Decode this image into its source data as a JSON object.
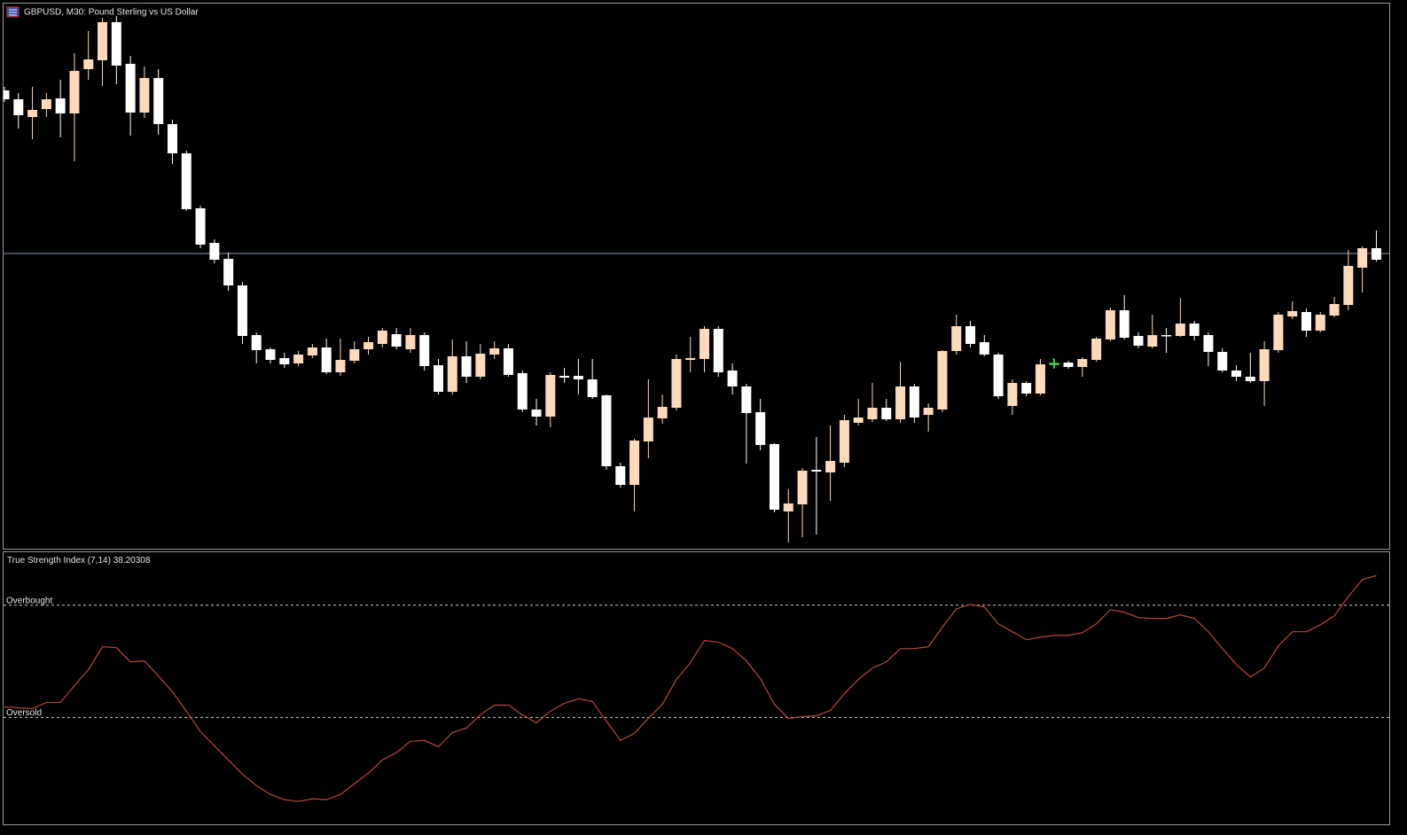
{
  "chart_data": [
    {
      "type": "candlestick",
      "title": "GBPUSD, M30:  Pound Sterling vs US Dollar",
      "open": [
        898,
        888,
        868,
        877,
        889,
        872,
        922,
        932,
        975,
        928,
        873,
        912,
        860,
        827,
        765,
        726,
        708,
        678,
        622,
        606,
        596,
        590,
        599,
        608,
        580,
        593,
        606,
        612,
        623,
        606,
        622,
        588,
        558,
        598,
        575,
        600,
        607,
        579,
        538,
        530,
        576,
        576,
        572,
        554,
        474,
        453,
        502,
        528,
        540,
        594,
        595,
        629,
        582,
        564,
        535,
        499,
        423,
        431,
        470,
        467,
        478,
        523,
        527,
        540,
        527,
        564,
        532,
        538,
        604,
        632,
        614,
        600,
        542,
        568,
        556,
        590,
        591,
        586,
        594,
        617,
        650,
        621,
        609,
        622,
        621,
        635,
        622,
        603,
        582,
        575,
        570,
        605,
        643,
        648,
        627,
        644,
        656,
        698,
        720
      ],
      "high": [
        902,
        895,
        902,
        895,
        910,
        940,
        965,
        980,
        982,
        937,
        925,
        922,
        865,
        830,
        768,
        730,
        715,
        682,
        625,
        608,
        602,
        604,
        612,
        618,
        618,
        615,
        620,
        630,
        630,
        630,
        625,
        595,
        617,
        615,
        612,
        615,
        612,
        582,
        550,
        580,
        585,
        595,
        595,
        555,
        478,
        505,
        572,
        555,
        600,
        620,
        632,
        632,
        590,
        567,
        550,
        500,
        448,
        472,
        507,
        520,
        532,
        550,
        568,
        550,
        592,
        567,
        545,
        605,
        645,
        638,
        622,
        602,
        572,
        570,
        595,
        595,
        593,
        597,
        620,
        653,
        667,
        625,
        645,
        630,
        664,
        638,
        625,
        607,
        588,
        602,
        615,
        648,
        660,
        652,
        648,
        665,
        718,
        722,
        740
      ],
      "low": [
        885,
        855,
        843,
        868,
        845,
        818,
        910,
        903,
        905,
        847,
        867,
        848,
        815,
        762,
        720,
        703,
        672,
        612,
        590,
        590,
        585,
        587,
        596,
        578,
        576,
        590,
        600,
        608,
        606,
        602,
        582,
        555,
        555,
        568,
        572,
        595,
        575,
        535,
        520,
        518,
        568,
        555,
        550,
        470,
        450,
        423,
        483,
        522,
        537,
        580,
        580,
        575,
        555,
        477,
        492,
        422,
        388,
        394,
        397,
        435,
        473,
        520,
        524,
        525,
        523,
        523,
        513,
        535,
        600,
        608,
        598,
        550,
        532,
        553,
        554,
        585,
        584,
        575,
        592,
        615,
        617,
        607,
        607,
        602,
        620,
        616,
        587,
        580,
        570,
        568,
        542,
        602,
        640,
        620,
        625,
        642,
        650,
        670,
        705
      ],
      "close": [
        888,
        870,
        876,
        888,
        872,
        920,
        933,
        975,
        926,
        873,
        912,
        860,
        827,
        764,
        724,
        707,
        678,
        621,
        605,
        594,
        589,
        600,
        608,
        580,
        594,
        606,
        614,
        627,
        609,
        622,
        587,
        558,
        598,
        575,
        601,
        607,
        577,
        538,
        530,
        577,
        574,
        572,
        552,
        474,
        453,
        503,
        529,
        541,
        595,
        596,
        629,
        580,
        564,
        534,
        498,
        425,
        432,
        469,
        468,
        480,
        526,
        529,
        540,
        527,
        564,
        529,
        540,
        604,
        632,
        612,
        600,
        553,
        568,
        556,
        589,
        589,
        586,
        595,
        618,
        650,
        619,
        610,
        622,
        621,
        635,
        621,
        603,
        582,
        575,
        570,
        606,
        645,
        649,
        627,
        645,
        657,
        700,
        720,
        707
      ],
      "up_color": "#ffdab9",
      "down_color": "#ffffff",
      "current_price": 714,
      "current_price_color": "#8a9ab0",
      "ylim": [
        381,
        996
      ]
    },
    {
      "type": "line",
      "title": "True Strength Index (7,14)",
      "last_value": 38.20308,
      "values": [
        -20.3,
        -20.7,
        -21.1,
        -18.3,
        -18.3,
        -10.8,
        -3.7,
        6.5,
        6.1,
        -0.2,
        0.2,
        -6.5,
        -13.6,
        -22.2,
        -31.3,
        -37.6,
        -43.9,
        -50.2,
        -55.3,
        -59.3,
        -61.6,
        -62.4,
        -61.2,
        -61.6,
        -59.3,
        -54.5,
        -49.8,
        -43.9,
        -40.7,
        -35.6,
        -35.2,
        -38.0,
        -31.7,
        -29.7,
        -23.8,
        -19.5,
        -19.5,
        -23.8,
        -27.4,
        -22.2,
        -18.7,
        -16.7,
        -17.9,
        -26.6,
        -35.2,
        -32.1,
        -25.4,
        -19.1,
        -8.1,
        -0.6,
        9.3,
        8.5,
        5.7,
        0.2,
        -7.7,
        -19.1,
        -25.4,
        -24.6,
        -24.2,
        -21.9,
        -14.4,
        -8.1,
        -3.0,
        -0.2,
        5.7,
        5.7,
        6.5,
        15.2,
        23.4,
        25.4,
        24.2,
        16.7,
        13.2,
        9.6,
        10.8,
        11.6,
        11.6,
        12.8,
        16.7,
        23.0,
        21.9,
        19.5,
        19.1,
        19.1,
        20.7,
        19.1,
        13.2,
        5.7,
        -1.4,
        -6.9,
        -3.0,
        6.9,
        13.2,
        13.2,
        16.3,
        20.3,
        28.9,
        36.4,
        38.2
      ],
      "color": "#b8473f",
      "levels": [
        {
          "label": "Overbought",
          "value": 25
        },
        {
          "label": "Oversold",
          "value": -25
        }
      ],
      "level_color": "#cfcfcf",
      "ylim": [
        -72.6,
        48.6
      ]
    }
  ]
}
